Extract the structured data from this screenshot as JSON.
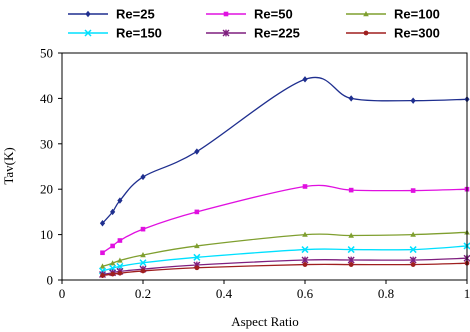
{
  "chart_data": {
    "type": "line",
    "xlabel": "Aspect Ratio",
    "ylabel": "Tav(K)",
    "xlim": [
      0,
      1
    ],
    "ylim": [
      0,
      50
    ],
    "xticks": [
      0,
      0.2,
      0.4,
      0.6,
      0.8,
      1
    ],
    "yticks": [
      0,
      10,
      20,
      30,
      40,
      50
    ],
    "xtick_labels": [
      "0",
      "0.2",
      "0.4",
      "0.6",
      "0.8",
      "1"
    ],
    "ytick_labels": [
      "0",
      "10",
      "20",
      "30",
      "40",
      "50"
    ],
    "grid": false,
    "legend_position": "top",
    "x": [
      0.1,
      0.125,
      0.143,
      0.2,
      0.333,
      0.6,
      0.714,
      0.867,
      1.0
    ],
    "series": [
      {
        "name": "Re=25",
        "color": "#1f2f8f",
        "marker": "diamond",
        "values": [
          12.5,
          15.0,
          17.5,
          22.7,
          28.3,
          44.2,
          40.0,
          39.5,
          39.8
        ]
      },
      {
        "name": "Re=50",
        "color": "#e010e0",
        "marker": "square",
        "values": [
          6.0,
          7.5,
          8.7,
          11.2,
          15.0,
          20.6,
          19.8,
          19.7,
          20.0
        ]
      },
      {
        "name": "Re=100",
        "color": "#7f9f2f",
        "marker": "triangle",
        "values": [
          3.0,
          3.7,
          4.3,
          5.5,
          7.5,
          10.0,
          9.8,
          10.0,
          10.5
        ]
      },
      {
        "name": "Re=150",
        "color": "#00e0ff",
        "marker": "x",
        "values": [
          2.0,
          2.6,
          3.0,
          3.8,
          5.0,
          6.7,
          6.7,
          6.7,
          7.5
        ]
      },
      {
        "name": "Re=225",
        "color": "#7f1f7f",
        "marker": "asterisk",
        "values": [
          1.2,
          1.6,
          1.9,
          2.4,
          3.3,
          4.4,
          4.4,
          4.4,
          4.8
        ]
      },
      {
        "name": "Re=300",
        "color": "#9f1f1f",
        "marker": "circle",
        "values": [
          1.0,
          1.3,
          1.5,
          2.0,
          2.7,
          3.4,
          3.4,
          3.4,
          3.7
        ]
      }
    ]
  }
}
